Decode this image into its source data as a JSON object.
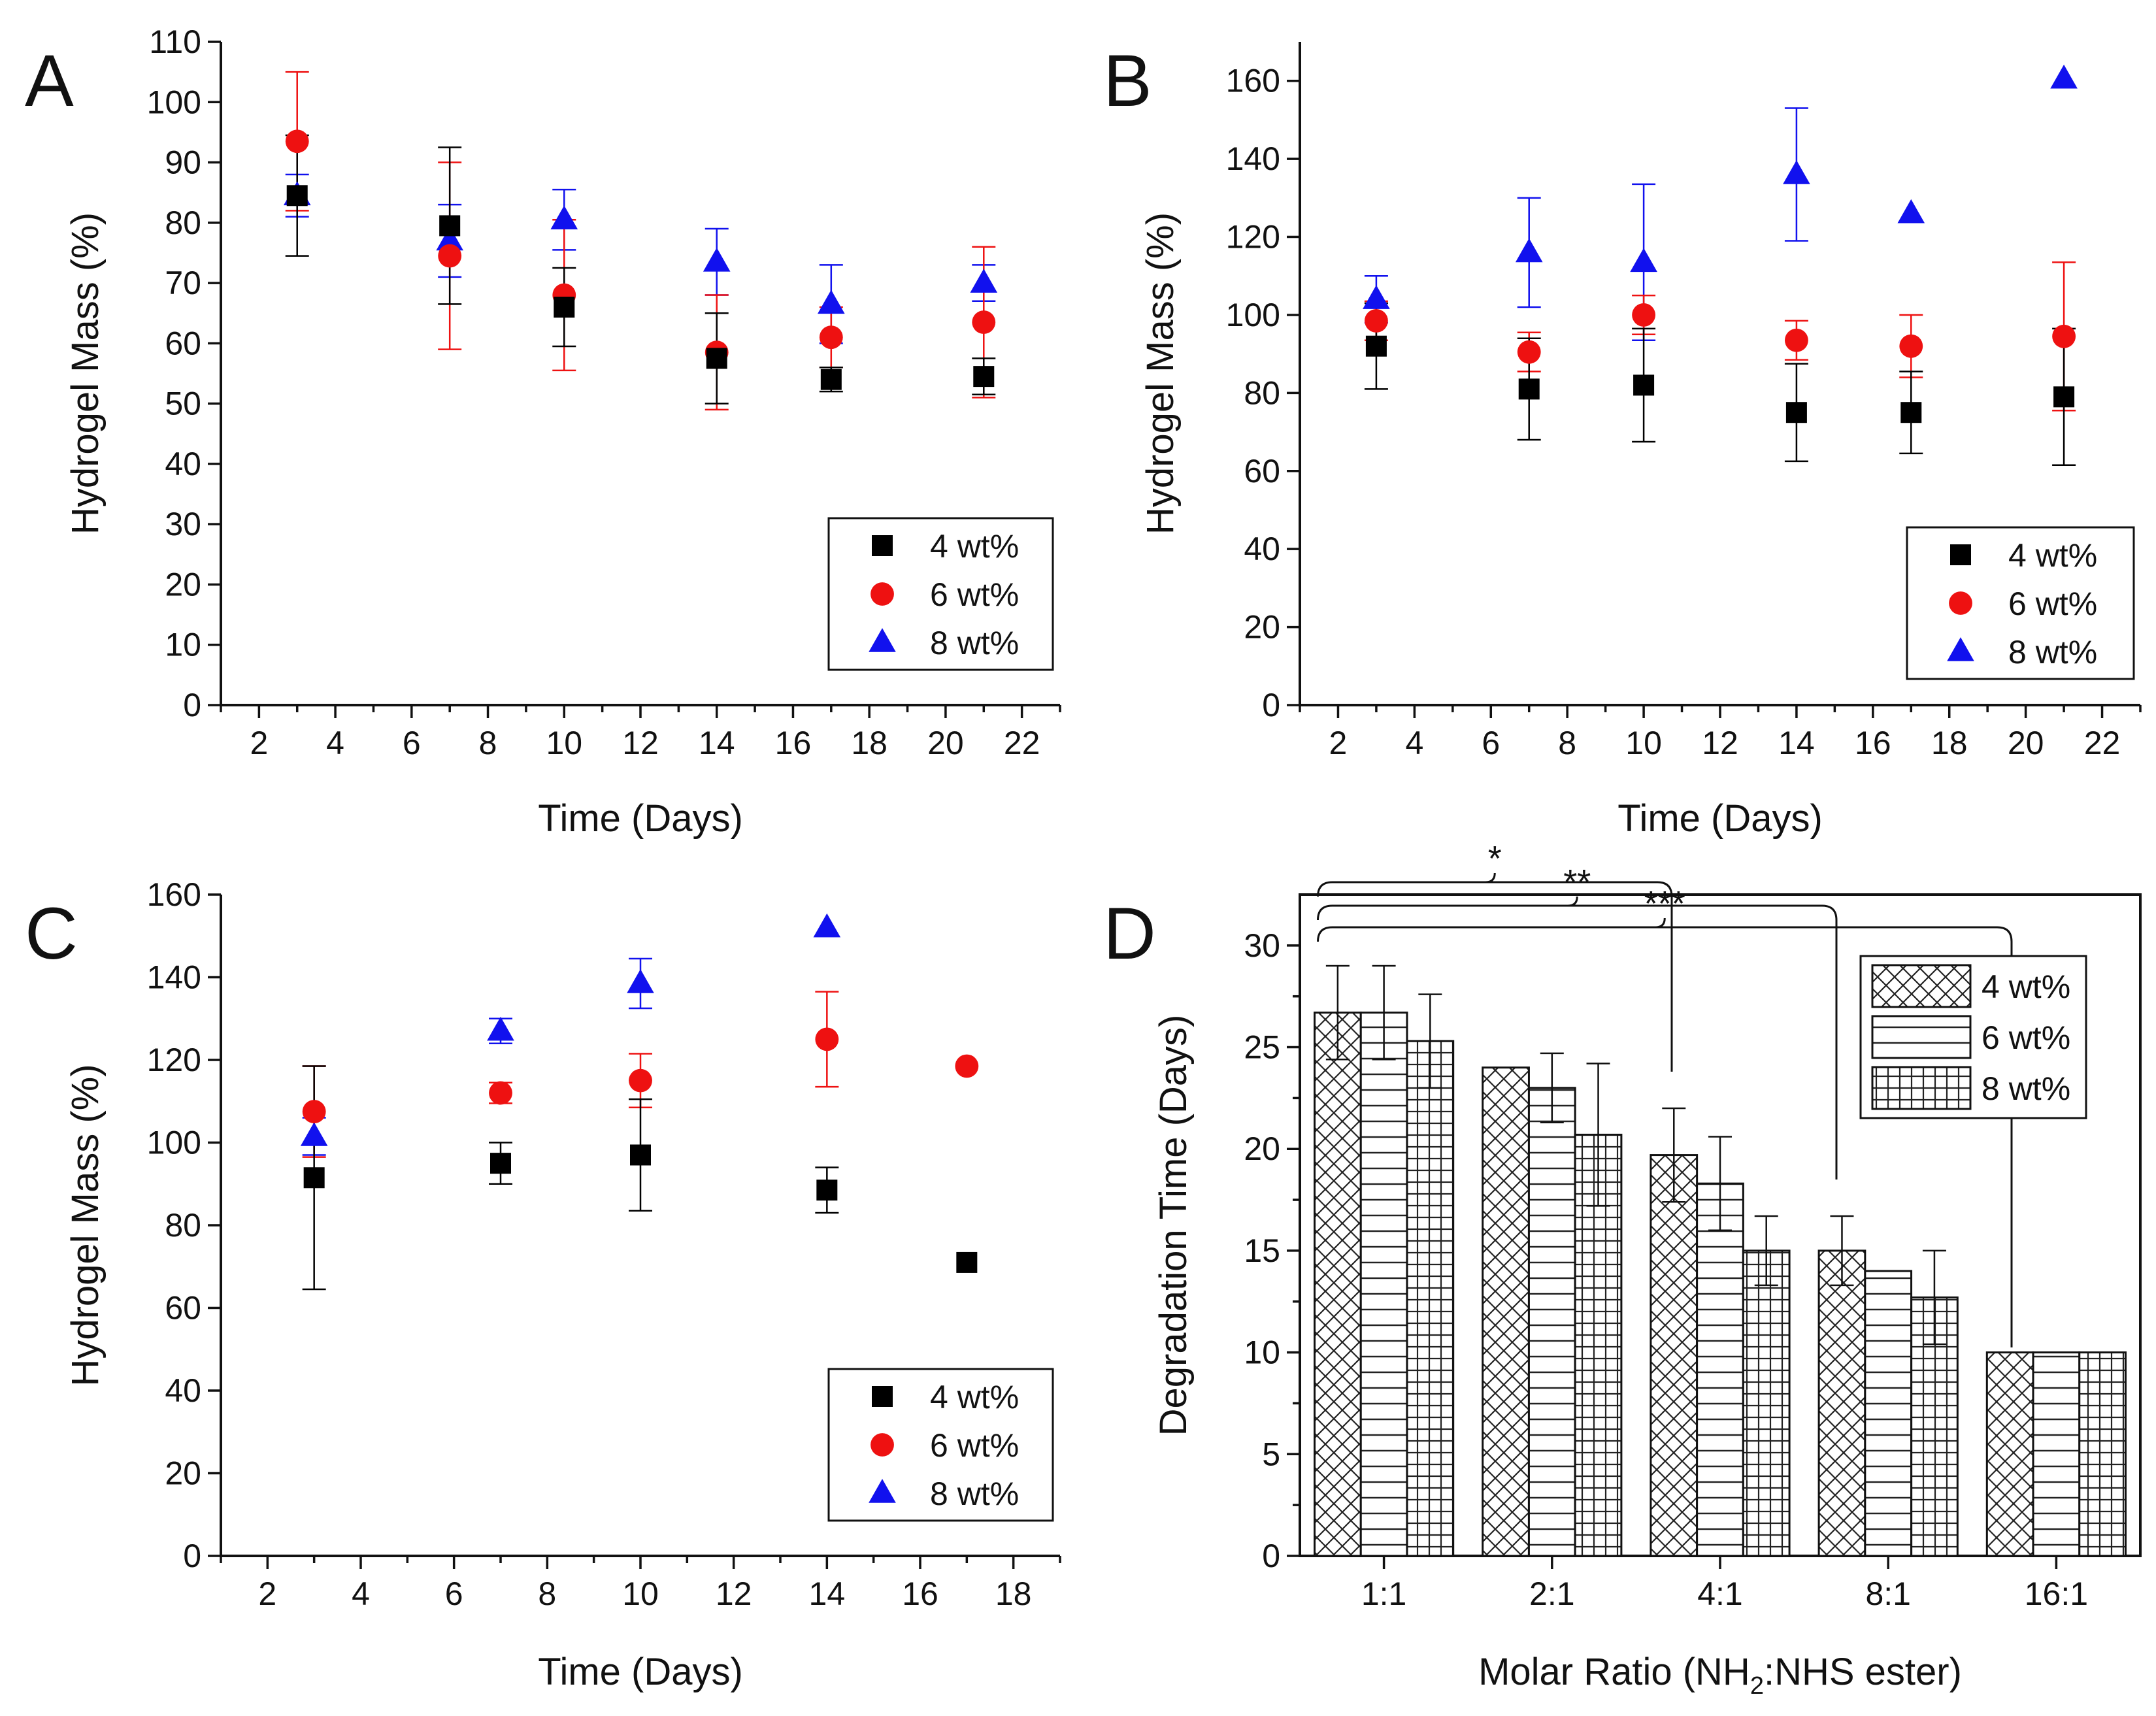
{
  "figure": {
    "colors": {
      "4 wt%": "#000000",
      "6 wt%": "#ee1111",
      "8 wt%": "#1111ee"
    },
    "icons": {
      "4 wt%": "square-marker",
      "6 wt%": "circle-marker",
      "8 wt%": "triangle-marker"
    }
  },
  "chart_data": [
    {
      "id": "A",
      "panel_label": "A",
      "type": "scatter",
      "xlabel": "Time (Days)",
      "ylabel": "Hydrogel Mass (%)",
      "xlim": [
        1,
        23
      ],
      "ylim": [
        0,
        110
      ],
      "xticks": [
        2,
        4,
        6,
        8,
        10,
        12,
        14,
        16,
        18,
        20,
        22
      ],
      "yticks": [
        0,
        10,
        20,
        30,
        40,
        50,
        60,
        70,
        80,
        90,
        100,
        110
      ],
      "legend_position": "bottom-right",
      "series": [
        {
          "name": "4 wt%",
          "marker": "square",
          "x": [
            3,
            7,
            10,
            14,
            17,
            21
          ],
          "y": [
            84.5,
            79.5,
            66,
            57.5,
            54,
            54.5
          ],
          "err": [
            10,
            13,
            6.5,
            7.5,
            2,
            3
          ]
        },
        {
          "name": "6 wt%",
          "marker": "circle",
          "x": [
            3,
            7,
            10,
            14,
            17,
            21
          ],
          "y": [
            93.5,
            74.5,
            68,
            58.5,
            61,
            63.5
          ],
          "err": [
            11.5,
            15.5,
            12.5,
            9.5,
            5,
            12.5
          ]
        },
        {
          "name": "8 wt%",
          "marker": "triangle",
          "x": [
            3,
            7,
            10,
            14,
            17,
            21
          ],
          "y": [
            84.5,
            77,
            80.5,
            73.5,
            66.5,
            70
          ],
          "err": [
            3.5,
            6,
            5,
            5.5,
            6.5,
            3
          ]
        }
      ]
    },
    {
      "id": "B",
      "panel_label": "B",
      "type": "scatter",
      "xlabel": "Time (Days)",
      "ylabel": "Hydrogel Mass (%)",
      "xlim": [
        1,
        23
      ],
      "ylim": [
        0,
        170
      ],
      "xticks": [
        2,
        4,
        6,
        8,
        10,
        12,
        14,
        16,
        18,
        20,
        22
      ],
      "yticks": [
        0,
        20,
        40,
        60,
        80,
        100,
        120,
        140,
        160
      ],
      "legend_position": "bottom-right",
      "series": [
        {
          "name": "4 wt%",
          "marker": "square",
          "x": [
            3,
            7,
            10,
            14,
            17,
            21
          ],
          "y": [
            92,
            81,
            82,
            75,
            75,
            79
          ],
          "err": [
            11,
            13,
            14.5,
            12.5,
            10.5,
            17.5
          ]
        },
        {
          "name": "6 wt%",
          "marker": "circle",
          "x": [
            3,
            7,
            10,
            14,
            17,
            21
          ],
          "y": [
            98.5,
            90.5,
            100,
            93.5,
            92,
            94.5
          ],
          "err": [
            5,
            5,
            5,
            5,
            8,
            19
          ]
        },
        {
          "name": "8 wt%",
          "marker": "triangle",
          "x": [
            3,
            7,
            10,
            14,
            17,
            21
          ],
          "y": [
            104,
            116,
            113.5,
            136,
            126,
            160.5
          ],
          "err": [
            6,
            14,
            20,
            17,
            0,
            0
          ]
        }
      ]
    },
    {
      "id": "C",
      "panel_label": "C",
      "type": "scatter",
      "xlabel": "Time (Days)",
      "ylabel": "Hydrogel Mass (%)",
      "xlim": [
        1,
        19
      ],
      "ylim": [
        0,
        160
      ],
      "xticks": [
        2,
        4,
        6,
        8,
        10,
        12,
        14,
        16,
        18
      ],
      "yticks": [
        0,
        20,
        40,
        60,
        80,
        100,
        120,
        140,
        160
      ],
      "legend_position": "bottom-right",
      "series": [
        {
          "name": "4 wt%",
          "marker": "square",
          "x": [
            3,
            7,
            10,
            14,
            17
          ],
          "y": [
            91.5,
            95,
            97,
            88.5,
            71
          ],
          "err": [
            27,
            5,
            13.5,
            5.5,
            0
          ]
        },
        {
          "name": "6 wt%",
          "marker": "circle",
          "x": [
            3,
            7,
            10,
            14,
            17
          ],
          "y": [
            107.5,
            112,
            115,
            125,
            118.5
          ],
          "err": [
            11,
            2.5,
            6.5,
            11.5,
            0
          ]
        },
        {
          "name": "8 wt%",
          "marker": "triangle",
          "x": [
            3,
            7,
            10,
            14,
            17
          ],
          "y": [
            101.5,
            127,
            138.5,
            152,
            null
          ],
          "err": [
            4.5,
            3,
            6,
            0,
            0
          ]
        }
      ]
    },
    {
      "id": "D",
      "panel_label": "D",
      "type": "bar",
      "xlabel": "Molar Ratio (NH",
      "xlabel_sub": "2",
      "xlabel_tail": ":NHS ester)",
      "ylabel": "Degradation Time (Days)",
      "ylim": [
        0,
        32.5
      ],
      "yticks": [
        0,
        5,
        10,
        15,
        20,
        25,
        30
      ],
      "categories": [
        "1:1",
        "2:1",
        "4:1",
        "8:1",
        "16:1"
      ],
      "legend_position": "top-right",
      "series": [
        {
          "name": "4 wt%",
          "pattern": "crosshatch",
          "values": [
            26.7,
            24,
            19.7,
            15,
            10
          ],
          "err": [
            2.3,
            0,
            2.3,
            1.7,
            0
          ]
        },
        {
          "name": "6 wt%",
          "pattern": "horizontal",
          "values": [
            26.7,
            23,
            18.3,
            14,
            10
          ],
          "err": [
            2.3,
            1.7,
            2.3,
            0,
            0
          ]
        },
        {
          "name": "8 wt%",
          "pattern": "grid",
          "values": [
            25.3,
            20.7,
            15,
            12.7,
            10
          ],
          "err": [
            2.3,
            3.5,
            1.7,
            2.3,
            0
          ]
        }
      ],
      "significance": [
        "*",
        "**",
        "***"
      ]
    }
  ]
}
